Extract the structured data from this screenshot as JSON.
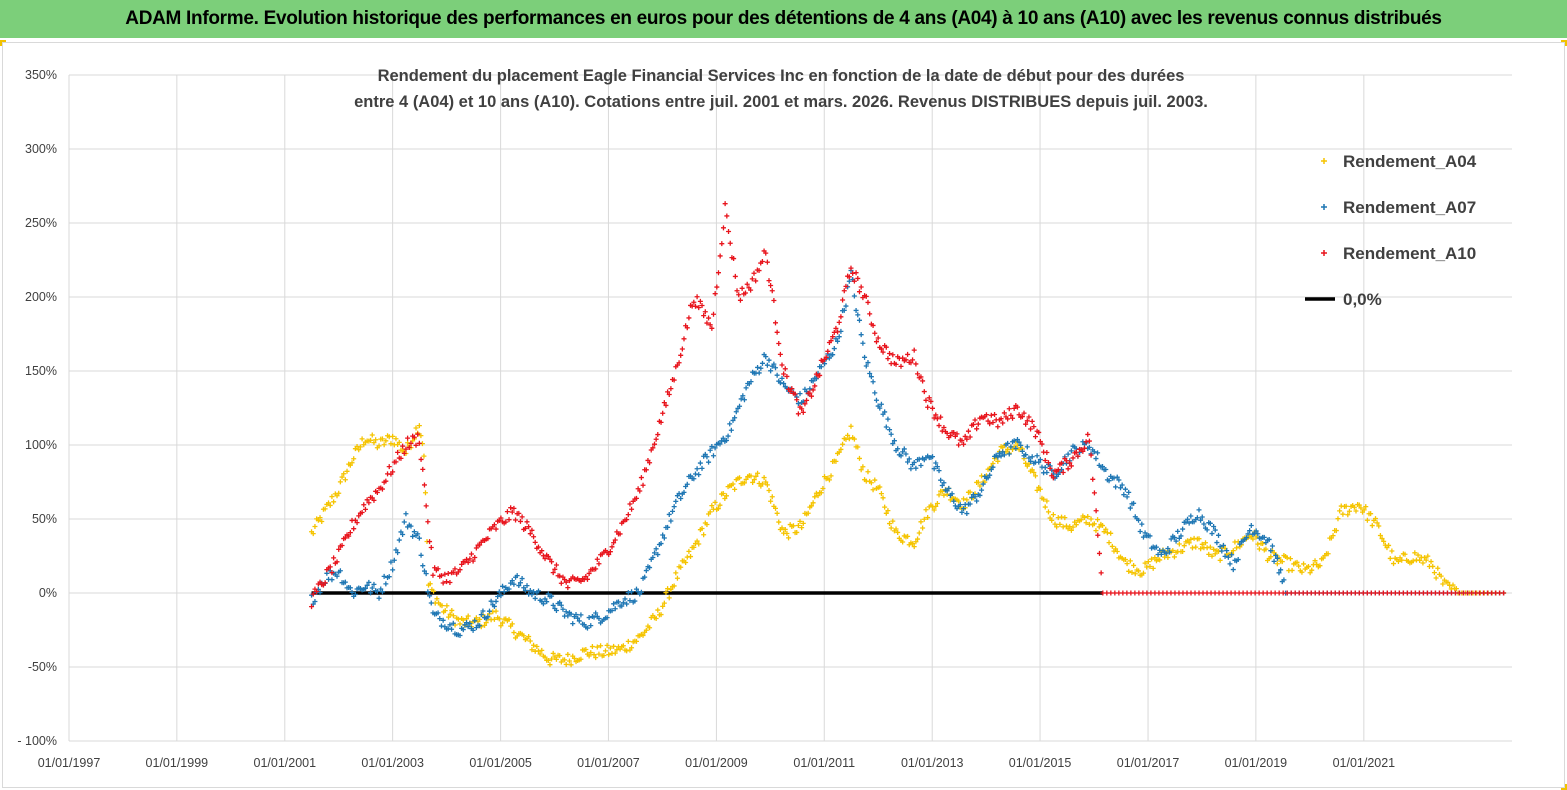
{
  "header": {
    "title": "ADAM Informe. Evolution historique des performances en euros pour des détentions de 4 ans (A04) à 10 ans (A10) avec les revenus connus distribués",
    "background": "#7ccf7a"
  },
  "chart_data": {
    "type": "scatter",
    "title_lines": [
      "Rendement du placement Eagle Financial Services  Inc en fonction de la date de début pour des durées",
      "entre 4 (A04) et 10 ans (A10).  Cotations entre juil. 2001 et mars. 2026. Revenus DISTRIBUES depuis juil. 2003."
    ],
    "xlabel": "",
    "ylabel": "",
    "x_tick_labels": [
      "01/01/1997",
      "01/01/1999",
      "01/01/2001",
      "01/01/2003",
      "01/01/2005",
      "01/01/2007",
      "01/01/2009",
      "01/01/2011",
      "01/01/2013",
      "01/01/2015",
      "01/01/2017",
      "01/01/2019",
      "01/01/2021"
    ],
    "y_tick_labels": [
      "350%",
      "300%",
      "250%",
      "200%",
      "150%",
      "100%",
      "50%",
      "0%",
      "-50%",
      "- 100%"
    ],
    "ylim": [
      -100,
      350
    ],
    "xlim": [
      "1997-01-01",
      "2023-10-01"
    ],
    "grid": true,
    "legend_position": "top-right",
    "series": [
      {
        "name": "Rendement_A04",
        "color": "#f5c400",
        "marker": "plus",
        "points": [
          [
            "2001-07-01",
            40
          ],
          [
            "2001-10-01",
            55
          ],
          [
            "2002-01-01",
            70
          ],
          [
            "2002-04-01",
            90
          ],
          [
            "2002-07-01",
            105
          ],
          [
            "2002-10-01",
            100
          ],
          [
            "2003-01-01",
            105
          ],
          [
            "2003-04-01",
            95
          ],
          [
            "2003-07-01",
            115
          ],
          [
            "2003-08-01",
            95
          ],
          [
            "2003-09-01",
            5
          ],
          [
            "2003-12-01",
            -10
          ],
          [
            "2004-04-01",
            -20
          ],
          [
            "2004-08-01",
            -20
          ],
          [
            "2004-12-01",
            -15
          ],
          [
            "2005-04-01",
            -25
          ],
          [
            "2005-08-01",
            -35
          ],
          [
            "2005-12-01",
            -45
          ],
          [
            "2006-04-01",
            -45
          ],
          [
            "2006-08-01",
            -40
          ],
          [
            "2006-12-01",
            -40
          ],
          [
            "2007-04-01",
            -38
          ],
          [
            "2007-08-01",
            -30
          ],
          [
            "2007-12-01",
            -15
          ],
          [
            "2008-04-01",
            10
          ],
          [
            "2008-08-01",
            30
          ],
          [
            "2008-12-01",
            55
          ],
          [
            "2009-04-01",
            70
          ],
          [
            "2009-08-01",
            80
          ],
          [
            "2009-12-01",
            75
          ],
          [
            "2010-04-01",
            40
          ],
          [
            "2010-08-01",
            45
          ],
          [
            "2010-12-01",
            70
          ],
          [
            "2011-04-01",
            90
          ],
          [
            "2011-07-01",
            110
          ],
          [
            "2011-10-01",
            80
          ],
          [
            "2012-01-01",
            70
          ],
          [
            "2012-05-01",
            40
          ],
          [
            "2012-09-01",
            35
          ],
          [
            "2012-12-01",
            55
          ],
          [
            "2013-04-01",
            70
          ],
          [
            "2013-08-01",
            60
          ],
          [
            "2013-12-01",
            75
          ],
          [
            "2014-04-01",
            95
          ],
          [
            "2014-08-01",
            100
          ],
          [
            "2014-12-01",
            75
          ],
          [
            "2015-04-01",
            50
          ],
          [
            "2015-08-01",
            45
          ],
          [
            "2015-12-01",
            50
          ],
          [
            "2016-04-01",
            40
          ],
          [
            "2016-08-01",
            20
          ],
          [
            "2016-12-01",
            15
          ],
          [
            "2017-04-01",
            25
          ],
          [
            "2017-08-01",
            30
          ],
          [
            "2017-12-01",
            35
          ],
          [
            "2018-04-01",
            25
          ],
          [
            "2018-08-01",
            30
          ],
          [
            "2018-12-01",
            40
          ],
          [
            "2019-04-01",
            25
          ],
          [
            "2019-08-01",
            20
          ],
          [
            "2019-12-01",
            15
          ],
          [
            "2020-04-01",
            20
          ],
          [
            "2020-08-01",
            55
          ],
          [
            "2020-12-01",
            60
          ],
          [
            "2021-04-01",
            45
          ],
          [
            "2021-08-01",
            20
          ],
          [
            "2021-12-01",
            25
          ],
          [
            "2022-04-01",
            20
          ],
          [
            "2022-07-01",
            5
          ],
          [
            "2022-10-01",
            0
          ],
          [
            "2023-03-01",
            0
          ],
          [
            "2023-09-01",
            0
          ]
        ]
      },
      {
        "name": "Rendement_A07",
        "color": "#1f77b4",
        "marker": "plus",
        "points": [
          [
            "2001-07-01",
            -5
          ],
          [
            "2001-10-01",
            10
          ],
          [
            "2002-01-01",
            15
          ],
          [
            "2002-04-01",
            0
          ],
          [
            "2002-07-01",
            5
          ],
          [
            "2002-10-01",
            0
          ],
          [
            "2003-01-01",
            20
          ],
          [
            "2003-04-01",
            50
          ],
          [
            "2003-07-01",
            35
          ],
          [
            "2003-10-01",
            -15
          ],
          [
            "2004-01-01",
            -20
          ],
          [
            "2004-04-01",
            -25
          ],
          [
            "2004-08-01",
            -20
          ],
          [
            "2004-12-01",
            -5
          ],
          [
            "2005-04-01",
            10
          ],
          [
            "2005-08-01",
            0
          ],
          [
            "2005-12-01",
            -5
          ],
          [
            "2006-04-01",
            -15
          ],
          [
            "2006-08-01",
            -20
          ],
          [
            "2006-12-01",
            -15
          ],
          [
            "2007-04-01",
            -5
          ],
          [
            "2007-08-01",
            0
          ],
          [
            "2007-12-01",
            30
          ],
          [
            "2008-04-01",
            60
          ],
          [
            "2008-08-01",
            80
          ],
          [
            "2008-12-01",
            95
          ],
          [
            "2009-04-01",
            110
          ],
          [
            "2009-08-01",
            140
          ],
          [
            "2009-12-01",
            160
          ],
          [
            "2010-04-01",
            140
          ],
          [
            "2010-08-01",
            130
          ],
          [
            "2010-12-01",
            150
          ],
          [
            "2011-04-01",
            170
          ],
          [
            "2011-07-01",
            215
          ],
          [
            "2011-10-01",
            160
          ],
          [
            "2012-01-01",
            130
          ],
          [
            "2012-05-01",
            100
          ],
          [
            "2012-09-01",
            85
          ],
          [
            "2012-12-01",
            95
          ],
          [
            "2013-04-01",
            70
          ],
          [
            "2013-08-01",
            55
          ],
          [
            "2013-12-01",
            70
          ],
          [
            "2014-04-01",
            95
          ],
          [
            "2014-08-01",
            100
          ],
          [
            "2014-12-01",
            90
          ],
          [
            "2015-04-01",
            80
          ],
          [
            "2015-08-01",
            95
          ],
          [
            "2015-12-01",
            100
          ],
          [
            "2016-04-01",
            80
          ],
          [
            "2016-08-01",
            70
          ],
          [
            "2016-12-01",
            40
          ],
          [
            "2017-04-01",
            25
          ],
          [
            "2017-08-01",
            40
          ],
          [
            "2017-12-01",
            55
          ],
          [
            "2018-04-01",
            40
          ],
          [
            "2018-08-01",
            20
          ],
          [
            "2018-12-01",
            45
          ],
          [
            "2019-04-01",
            35
          ],
          [
            "2019-08-01",
            0
          ],
          [
            "2023-09-01",
            0
          ]
        ]
      },
      {
        "name": "Rendement_A10",
        "color": "#e8141c",
        "marker": "plus",
        "points": [
          [
            "2001-07-01",
            -5
          ],
          [
            "2001-10-01",
            10
          ],
          [
            "2002-01-01",
            25
          ],
          [
            "2002-04-01",
            45
          ],
          [
            "2002-07-01",
            60
          ],
          [
            "2002-10-01",
            70
          ],
          [
            "2003-01-01",
            85
          ],
          [
            "2003-04-01",
            100
          ],
          [
            "2003-07-01",
            105
          ],
          [
            "2003-10-01",
            15
          ],
          [
            "2004-01-01",
            10
          ],
          [
            "2004-04-01",
            15
          ],
          [
            "2004-08-01",
            30
          ],
          [
            "2004-12-01",
            45
          ],
          [
            "2005-04-01",
            55
          ],
          [
            "2005-08-01",
            40
          ],
          [
            "2005-12-01",
            20
          ],
          [
            "2006-04-01",
            5
          ],
          [
            "2006-08-01",
            10
          ],
          [
            "2006-12-01",
            25
          ],
          [
            "2007-04-01",
            45
          ],
          [
            "2007-08-01",
            70
          ],
          [
            "2007-12-01",
            110
          ],
          [
            "2008-04-01",
            150
          ],
          [
            "2008-08-01",
            200
          ],
          [
            "2008-12-01",
            180
          ],
          [
            "2009-03-01",
            260
          ],
          [
            "2009-06-01",
            200
          ],
          [
            "2009-09-01",
            210
          ],
          [
            "2009-12-01",
            230
          ],
          [
            "2010-04-01",
            150
          ],
          [
            "2010-08-01",
            120
          ],
          [
            "2010-12-01",
            150
          ],
          [
            "2011-04-01",
            180
          ],
          [
            "2011-07-01",
            220
          ],
          [
            "2011-10-01",
            200
          ],
          [
            "2012-01-01",
            170
          ],
          [
            "2012-05-01",
            155
          ],
          [
            "2012-09-01",
            160
          ],
          [
            "2012-12-01",
            130
          ],
          [
            "2013-04-01",
            110
          ],
          [
            "2013-08-01",
            100
          ],
          [
            "2013-12-01",
            120
          ],
          [
            "2014-04-01",
            115
          ],
          [
            "2014-08-01",
            125
          ],
          [
            "2014-12-01",
            110
          ],
          [
            "2015-04-01",
            80
          ],
          [
            "2015-08-01",
            90
          ],
          [
            "2015-12-01",
            105
          ],
          [
            "2016-03-01",
            0
          ],
          [
            "2023-09-01",
            0
          ]
        ]
      },
      {
        "name": "0,0%",
        "color": "#000000",
        "marker": "line",
        "points": [
          [
            "2001-07-01",
            0
          ],
          [
            "2016-03-01",
            0
          ]
        ]
      }
    ]
  }
}
